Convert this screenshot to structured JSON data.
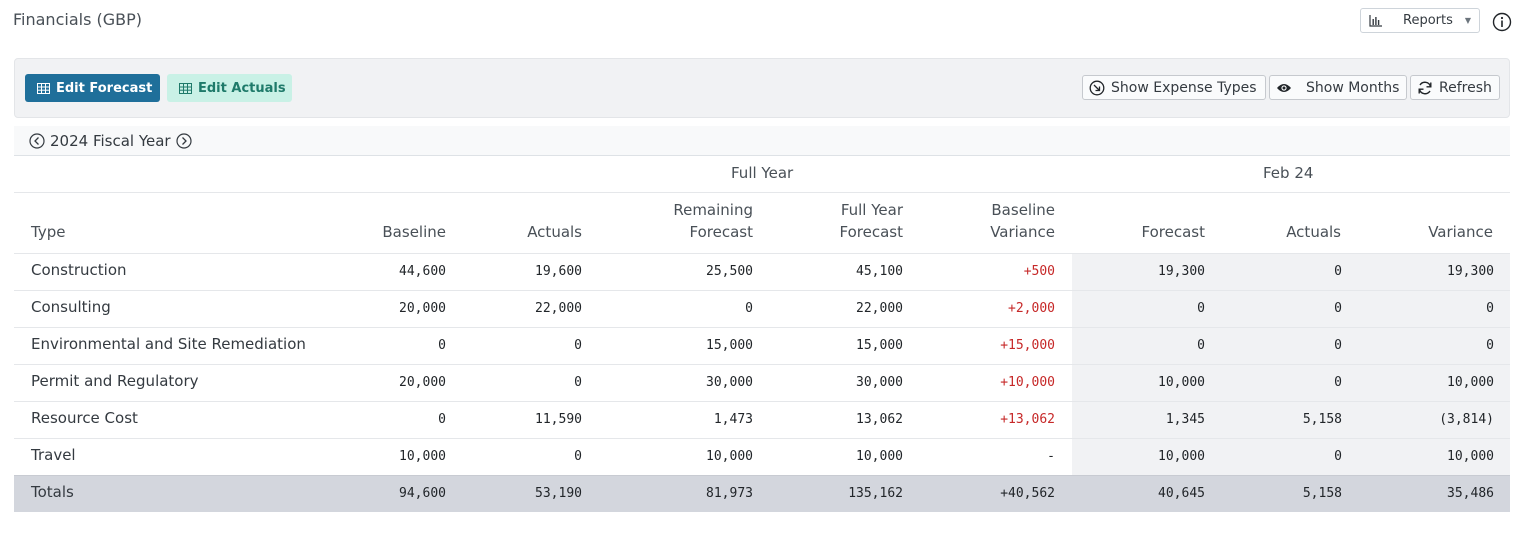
{
  "header": {
    "title": "Financials (GBP)",
    "reports_label": "Reports"
  },
  "toolbar": {
    "edit_forecast": "Edit Forecast",
    "edit_actuals": "Edit Actuals",
    "show_expense_types": "Show Expense Types",
    "show_months": "Show Months",
    "refresh": "Refresh"
  },
  "fiscal": {
    "label": "2024 Fiscal Year"
  },
  "table": {
    "group_full_year": "Full Year",
    "group_month": "Feb 24",
    "columns": {
      "type": "Type",
      "baseline": "Baseline",
      "actuals": "Actuals",
      "remaining_1": "Remaining",
      "remaining_2": "Forecast",
      "fullyear_1": "Full Year",
      "fullyear_2": "Forecast",
      "bvar_1": "Baseline",
      "bvar_2": "Variance",
      "m_forecast": "Forecast",
      "m_actuals": "Actuals",
      "m_variance": "Variance"
    },
    "rows": [
      {
        "type": "Construction",
        "baseline": "44,600",
        "actuals": "19,600",
        "remaining": "25,500",
        "full_year": "45,100",
        "baseline_variance": "+500",
        "m_forecast": "19,300",
        "m_actuals": "0",
        "m_variance": "19,300"
      },
      {
        "type": "Consulting",
        "baseline": "20,000",
        "actuals": "22,000",
        "remaining": "0",
        "full_year": "22,000",
        "baseline_variance": "+2,000",
        "m_forecast": "0",
        "m_actuals": "0",
        "m_variance": "0"
      },
      {
        "type": "Environmental and Site Remediation",
        "baseline": "0",
        "actuals": "0",
        "remaining": "15,000",
        "full_year": "15,000",
        "baseline_variance": "+15,000",
        "m_forecast": "0",
        "m_actuals": "0",
        "m_variance": "0"
      },
      {
        "type": "Permit and Regulatory",
        "baseline": "20,000",
        "actuals": "0",
        "remaining": "30,000",
        "full_year": "30,000",
        "baseline_variance": "+10,000",
        "m_forecast": "10,000",
        "m_actuals": "0",
        "m_variance": "10,000"
      },
      {
        "type": "Resource Cost",
        "baseline": "0",
        "actuals": "11,590",
        "remaining": "1,473",
        "full_year": "13,062",
        "baseline_variance": "+13,062",
        "m_forecast": "1,345",
        "m_actuals": "5,158",
        "m_variance": "(3,814)"
      },
      {
        "type": "Travel",
        "baseline": "10,000",
        "actuals": "0",
        "remaining": "10,000",
        "full_year": "10,000",
        "baseline_variance": "-",
        "m_forecast": "10,000",
        "m_actuals": "0",
        "m_variance": "10,000"
      }
    ],
    "totals": {
      "type": "Totals",
      "baseline": "94,600",
      "actuals": "53,190",
      "remaining": "81,973",
      "full_year": "135,162",
      "baseline_variance": "+40,562",
      "m_forecast": "40,645",
      "m_actuals": "5,158",
      "m_variance": "35,486"
    }
  },
  "colors": {
    "primary": "#1f6f9a",
    "secondary_bg": "#c9f1e6",
    "variance_positive": "#c62828"
  }
}
